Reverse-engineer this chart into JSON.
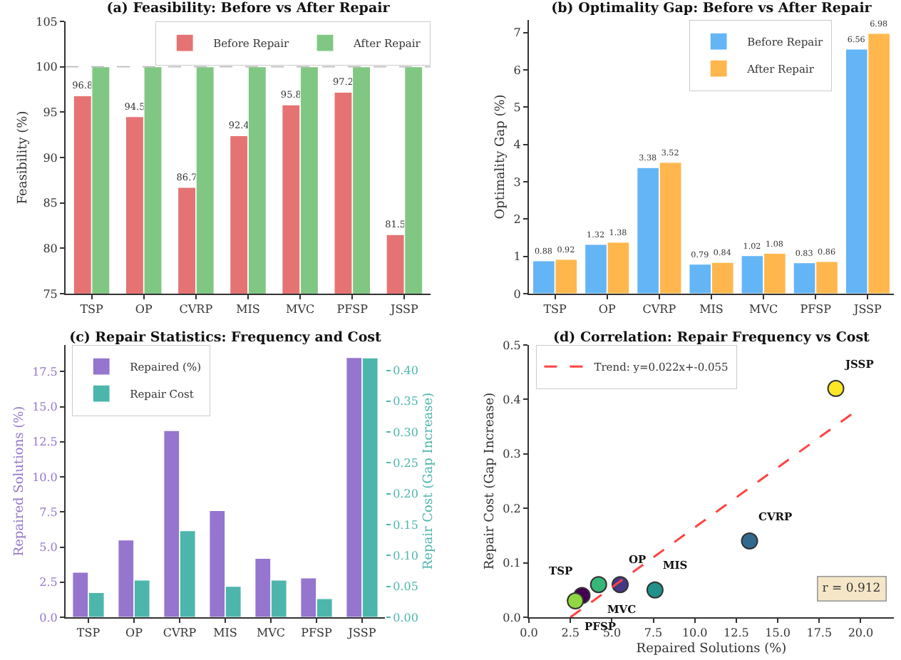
{
  "chart_data": [
    {
      "type": "bar",
      "title": "(a) Feasibility: Before vs After Repair",
      "ylabel": "Feasibility (%)",
      "categories": [
        "TSP",
        "OP",
        "CVRP",
        "MIS",
        "MVC",
        "PFSP",
        "JSSP"
      ],
      "series": [
        {
          "name": "Before Repair",
          "color": "#e57373",
          "values": [
            96.8,
            94.5,
            86.7,
            92.4,
            95.8,
            97.2,
            81.5
          ],
          "value_labels": [
            "96.8",
            "94.5",
            "86.7",
            "92.4",
            "95.8",
            "97.2",
            "81.5"
          ]
        },
        {
          "name": "After Repair",
          "color": "#81c784",
          "values": [
            100,
            100,
            100,
            100,
            100,
            100,
            100
          ]
        }
      ],
      "ylim": [
        75,
        105
      ],
      "yticks": [
        75,
        80,
        85,
        90,
        95,
        100,
        105
      ],
      "ref_lines": [
        {
          "axis": "y",
          "value": 100,
          "color": "#bbbbbb",
          "line_style": "dashed"
        }
      ],
      "legend": "top right",
      "grid": false
    },
    {
      "type": "bar",
      "title": "(b) Optimality Gap: Before vs After Repair",
      "ylabel": "Optimality Gap (%)",
      "categories": [
        "TSP",
        "OP",
        "CVRP",
        "MIS",
        "MVC",
        "PFSP",
        "JSSP"
      ],
      "series": [
        {
          "name": "Before Repair",
          "color": "#64b5f6",
          "values": [
            0.88,
            1.32,
            3.38,
            0.79,
            1.02,
            0.83,
            6.56
          ]
        },
        {
          "name": "After Repair",
          "color": "#ffb74d",
          "values": [
            0.92,
            1.38,
            3.52,
            0.84,
            1.08,
            0.86,
            6.98
          ]
        }
      ],
      "ylim": [
        0,
        7.34
      ],
      "yticks": [
        0,
        1,
        2,
        3,
        4,
        5,
        6,
        7
      ],
      "data_labels": true,
      "legend": "top right",
      "grid": false
    },
    {
      "type": "bar",
      "title": "(c) Repair Statistics: Frequency and Cost",
      "ylabel": "Repaired Solutions (%)",
      "y2label": "Repair Cost (Gap Increase)",
      "categories": [
        "TSP",
        "OP",
        "CVRP",
        "MIS",
        "MVC",
        "PFSP",
        "JSSP"
      ],
      "series": [
        {
          "name": "Repaired (%)",
          "color": "#9575cd",
          "values": [
            3.2,
            5.5,
            13.3,
            7.6,
            4.2,
            2.8,
            18.5
          ]
        },
        {
          "name": "Repair Cost",
          "color": "#4db6ac",
          "axis": "y2",
          "values": [
            0.04,
            0.06,
            0.14,
            0.05,
            0.06,
            0.03,
            0.42
          ]
        }
      ],
      "ylim": [
        0,
        19.4
      ],
      "yticks": [
        {
          "value": 0,
          "label": "0.0"
        },
        2.5,
        {
          "value": 5,
          "label": "5.0"
        },
        7.5,
        {
          "value": 10,
          "label": "10.0"
        },
        12.5,
        {
          "value": 15,
          "label": "15.0"
        },
        17.5
      ],
      "y2lim": [
        0,
        0.441
      ],
      "y2ticks": [
        {
          "value": 0,
          "label": "0.00"
        },
        0.05,
        {
          "value": 0.1,
          "label": "0.10"
        },
        0.15,
        {
          "value": 0.2,
          "label": "0.20"
        },
        0.25,
        {
          "value": 0.3,
          "label": "0.30"
        },
        0.35,
        {
          "value": 0.4,
          "label": "0.40"
        }
      ],
      "legend": "top left",
      "grid": false
    },
    {
      "type": "scatter",
      "title": "(d) Correlation: Repair Frequency vs Cost",
      "xlabel": "Repaired Solutions (%)",
      "ylabel": "Repair Cost (Gap Increase)",
      "x": [
        3.2,
        5.5,
        13.3,
        7.6,
        4.2,
        2.8,
        18.5
      ],
      "series": [
        {
          "values": [
            0.04,
            0.06,
            0.14,
            0.05,
            0.06,
            0.03,
            0.42
          ],
          "colors": [
            "#440154",
            "#443983",
            "#31688e",
            "#21918c",
            "#35b779",
            "#90d743",
            "#fde725"
          ]
        },
        {
          "type": "line",
          "name": "Trend: y=0.022x+-0.055",
          "color": "#ff4444",
          "line_style": "dashed",
          "marker": "none",
          "x": [
            2.5,
            19.5
          ],
          "values": [
            0,
            0.374
          ]
        }
      ],
      "annotations": [
        {
          "text": "TSP",
          "x": 3.2,
          "y": 0.04
        },
        {
          "text": "OP",
          "x": 5.5,
          "y": 0.06
        },
        {
          "text": "CVRP",
          "x": 13.3,
          "y": 0.14
        },
        {
          "text": "MIS",
          "x": 7.6,
          "y": 0.05
        },
        {
          "text": "MVC",
          "x": 4.2,
          "y": 0.06
        },
        {
          "text": "PFSP",
          "x": 2.8,
          "y": 0.03
        },
        {
          "text": "JSSP",
          "x": 18.5,
          "y": 0.42
        },
        "r = 0.912"
      ],
      "xlim": [
        0,
        22
      ],
      "xticks": [
        {
          "value": 0,
          "label": "0.0"
        },
        2.5,
        {
          "value": 5,
          "label": "5.0"
        },
        7.5,
        {
          "value": 10,
          "label": "10.0"
        },
        12.5,
        {
          "value": 15,
          "label": "15.0"
        },
        17.5,
        {
          "value": 20,
          "label": "20.0"
        }
      ],
      "ylim": [
        0,
        0.5
      ],
      "yticks": [
        {
          "value": 0,
          "label": "0.0"
        },
        0.1,
        0.2,
        0.3,
        0.4,
        0.5
      ],
      "marker": "circle",
      "legend": "top left",
      "grid": false
    }
  ]
}
